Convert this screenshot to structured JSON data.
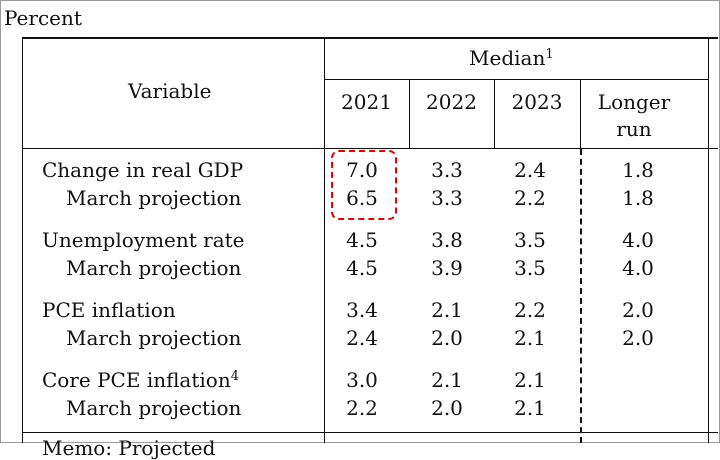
{
  "units_label": "Percent",
  "header": {
    "variable": "Variable",
    "median": "Median",
    "median_note": "1",
    "years": [
      "2021",
      "2022",
      "2023"
    ],
    "longer_run_line1": "Longer",
    "longer_run_line2": "run"
  },
  "rows": [
    {
      "label": "Change in real GDP",
      "note": "",
      "values": [
        "7.0",
        "3.3",
        "2.4",
        "1.8"
      ]
    },
    {
      "label": "March projection",
      "note": "",
      "values": [
        "6.5",
        "3.3",
        "2.2",
        "1.8"
      ]
    },
    {
      "label": "Unemployment rate",
      "note": "",
      "values": [
        "4.5",
        "3.8",
        "3.5",
        "4.0"
      ]
    },
    {
      "label": "March projection",
      "note": "",
      "values": [
        "4.5",
        "3.9",
        "3.5",
        "4.0"
      ]
    },
    {
      "label": "PCE inflation",
      "note": "",
      "values": [
        "3.4",
        "2.1",
        "2.2",
        "2.0"
      ]
    },
    {
      "label": "March projection",
      "note": "",
      "values": [
        "2.4",
        "2.0",
        "2.1",
        "2.0"
      ]
    },
    {
      "label": "Core PCE inflation",
      "note": "4",
      "values": [
        "3.0",
        "2.1",
        "2.1",
        ""
      ]
    },
    {
      "label": "March projection",
      "note": "",
      "values": [
        "2.2",
        "2.0",
        "2.1",
        ""
      ]
    }
  ],
  "partial_row_text": "Memo: Projected",
  "highlight_color": "#e60000"
}
